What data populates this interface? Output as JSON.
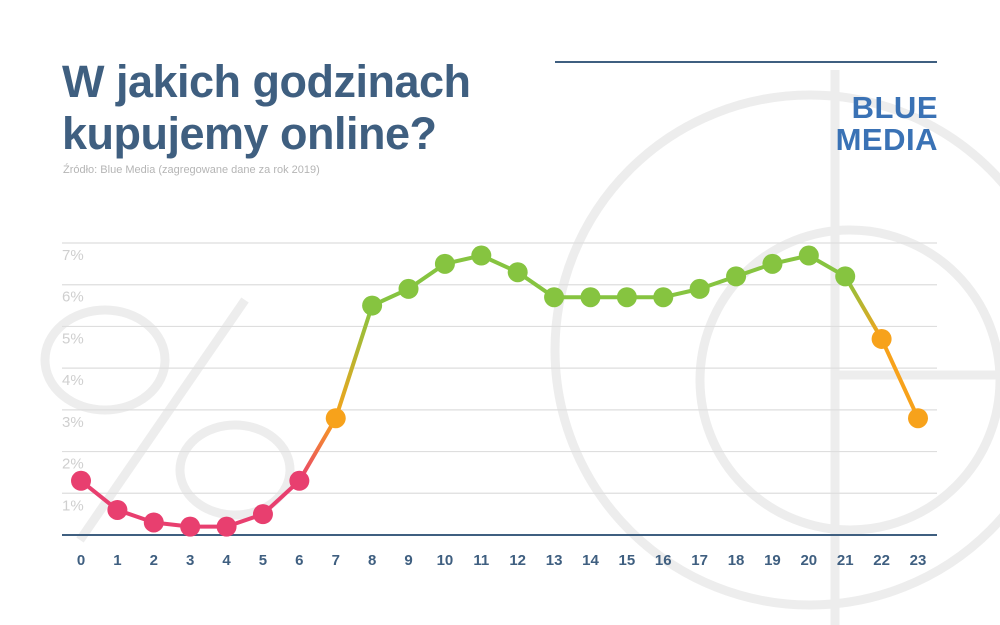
{
  "header": {
    "title_line1": "W jakich godzinach",
    "title_line2": "kupujemy online?",
    "source": "Źródło: Blue Media (zagregowane dane za rok 2019)"
  },
  "logo": {
    "line1": "BLUE",
    "line2": "MEDIA",
    "color": "#3a72b5"
  },
  "colors": {
    "title": "#3f5f80",
    "low": "#e83f6f",
    "mid": "#f7a21b",
    "high": "#86c440"
  },
  "chart_data": {
    "type": "line",
    "title": "W jakich godzinach kupujemy online?",
    "xlabel": "",
    "ylabel": "",
    "x": [
      0,
      1,
      2,
      3,
      4,
      5,
      6,
      7,
      8,
      9,
      10,
      11,
      12,
      13,
      14,
      15,
      16,
      17,
      18,
      19,
      20,
      21,
      22,
      23
    ],
    "values": [
      1.3,
      0.6,
      0.3,
      0.2,
      0.2,
      0.5,
      1.3,
      2.8,
      5.5,
      5.9,
      6.5,
      6.7,
      6.3,
      5.7,
      5.7,
      5.7,
      5.7,
      5.9,
      6.2,
      6.5,
      6.7,
      6.2,
      4.7,
      2.8
    ],
    "ylim": [
      0,
      7
    ],
    "yticks": [
      "1%",
      "2%",
      "3%",
      "4%",
      "5%",
      "6%",
      "7%"
    ],
    "grid": true,
    "legend": "none"
  }
}
